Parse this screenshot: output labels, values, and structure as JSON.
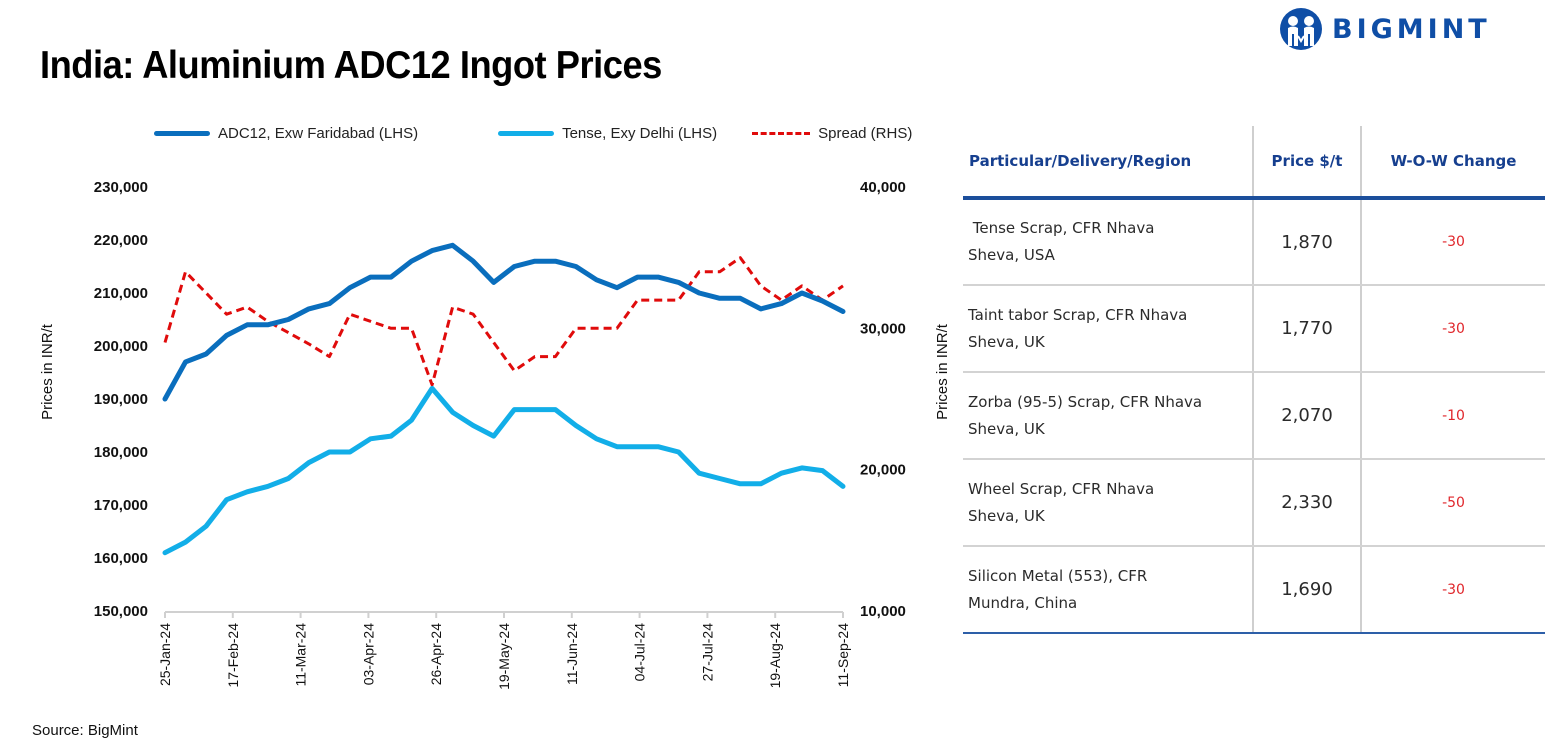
{
  "header": {
    "title": "India: Aluminium ADC12 Ingot Prices",
    "brand": "BIGMINT",
    "brand_color": "#0f4ea6"
  },
  "source": "Source: BigMint",
  "chart_data": {
    "type": "line",
    "title": "India: Aluminium ADC12 Ingot Prices",
    "xlabel": "",
    "ylabel": "Prices in INR/t",
    "y2label": "Prices in INR/t",
    "ylim": [
      150000,
      230000
    ],
    "y2lim": [
      10000,
      40000
    ],
    "yticks": [
      "230,000",
      "220,000",
      "210,000",
      "200,000",
      "190,000",
      "180,000",
      "170,000",
      "160,000",
      "150,000"
    ],
    "y2ticks": [
      "40,000",
      "30,000",
      "20,000",
      "10,000"
    ],
    "xtick_labels": [
      "25-Jan-24",
      "17-Feb-24",
      "11-Mar-24",
      "03-Apr-24",
      "26-Apr-24",
      "19-May-24",
      "11-Jun-24",
      "04-Jul-24",
      "27-Jul-24",
      "19-Aug-24",
      "11-Sep-24"
    ],
    "x_start": "25-Jan-24",
    "x_end": "11-Sep-24",
    "point_count": 34,
    "grid": false,
    "legend_position": "top",
    "series": [
      {
        "name": "ADC12, Exw Faridabad (LHS)",
        "axis": "left",
        "color": "#0a6ebd",
        "style": "solid",
        "values": [
          190000,
          197000,
          198500,
          202000,
          204000,
          204000,
          205000,
          207000,
          208000,
          211000,
          213000,
          213000,
          216000,
          218000,
          219000,
          216000,
          212000,
          215000,
          216000,
          216000,
          215000,
          212500,
          211000,
          213000,
          213000,
          212000,
          210000,
          209000,
          209000,
          207000,
          208000,
          210000,
          208500,
          206500
        ]
      },
      {
        "name": "Tense, Exy Delhi (LHS)",
        "axis": "left",
        "color": "#12aee8",
        "style": "solid",
        "values": [
          161000,
          163000,
          166000,
          171000,
          172500,
          173500,
          175000,
          178000,
          180000,
          180000,
          182500,
          183000,
          186000,
          192000,
          187500,
          185000,
          183000,
          188000,
          188000,
          188000,
          185000,
          182500,
          181000,
          181000,
          181000,
          180000,
          176000,
          175000,
          174000,
          174000,
          176000,
          177000,
          176500,
          173500
        ]
      },
      {
        "name": "Spread (RHS)",
        "axis": "right",
        "color": "#e00b0b",
        "style": "dashed",
        "values": [
          29000,
          34000,
          32500,
          31000,
          31500,
          30500,
          29700,
          28900,
          28000,
          31000,
          30500,
          30000,
          30000,
          26000,
          31500,
          31000,
          29000,
          27000,
          28000,
          28000,
          30000,
          30000,
          30000,
          32000,
          32000,
          32000,
          34000,
          34000,
          35000,
          33000,
          32000,
          33000,
          32000,
          33000
        ]
      }
    ]
  },
  "table": {
    "headers": [
      "Particular/Delivery/Region",
      "Price $/t",
      "W-O-W Change"
    ],
    "rows": [
      {
        "line1": " Tense Scrap, CFR Nhava",
        "line2": "Sheva, USA",
        "price": "1,870",
        "change": "-30"
      },
      {
        "line1": "Taint tabor Scrap, CFR Nhava",
        "line2": "Sheva, UK",
        "price": "1,770",
        "change": "-30"
      },
      {
        "line1": "Zorba (95-5) Scrap, CFR Nhava",
        "line2": "Sheva, UK",
        "price": "2,070",
        "change": "-10"
      },
      {
        "line1": "Wheel Scrap, CFR Nhava",
        "line2": "Sheva, UK",
        "price": "2,330",
        "change": "-50"
      },
      {
        "line1": "Silicon Metal (553), CFR",
        "line2": "Mundra, China",
        "price": "1,690",
        "change": "-30"
      }
    ]
  }
}
